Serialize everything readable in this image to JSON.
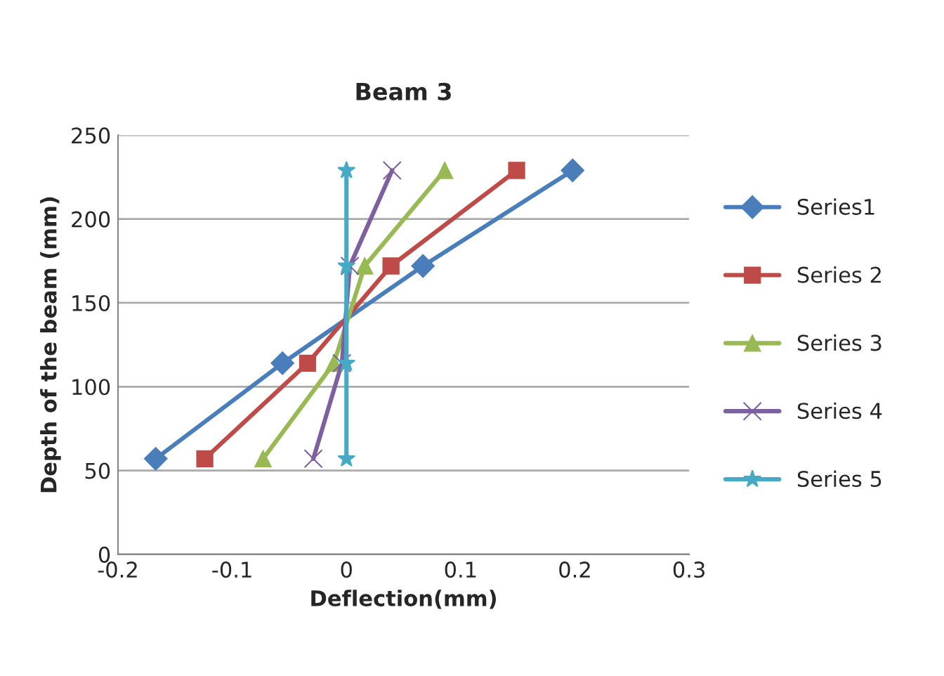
{
  "chart_data": {
    "type": "line",
    "title": "Beam 3",
    "xlabel": "Deflection(mm)",
    "ylabel": "Depth of the beam (mm)",
    "xlim": [
      -0.2,
      0.3
    ],
    "xticks": [
      {
        "value": -0.2,
        "label": "-0.2"
      },
      {
        "value": -0.1,
        "label": "-0.1"
      },
      0,
      0.1,
      0.2,
      0.3
    ],
    "ylim": [
      0,
      250
    ],
    "yticks": [
      0,
      50,
      100,
      150,
      200,
      250
    ],
    "grid": "y",
    "legend": "right",
    "series": [
      {
        "name": "Series1",
        "color": "#4a7ebb",
        "marker": "diamond",
        "x": [
          -0.167,
          -0.056,
          0.067,
          0.198
        ],
        "values": [
          57,
          114,
          172,
          229
        ]
      },
      {
        "name": "Series 2",
        "color": "#be4b48",
        "marker": "square",
        "x": [
          -0.124,
          -0.034,
          0.039,
          0.149
        ],
        "values": [
          57,
          114,
          172,
          229
        ]
      },
      {
        "name": "Series 3",
        "color": "#98b954",
        "marker": "triangle",
        "x": [
          -0.073,
          -0.011,
          0.016,
          0.086
        ],
        "values": [
          57,
          114,
          172,
          229
        ]
      },
      {
        "name": "Series 4",
        "color": "#7d60a0",
        "marker": "cross",
        "x": [
          -0.029,
          -0.004,
          0.003,
          0.04
        ],
        "values": [
          57,
          114,
          172,
          229
        ]
      },
      {
        "name": "Series 5",
        "color": "#46aac5",
        "marker": "star",
        "x": [
          0,
          0,
          0,
          0
        ],
        "values": [
          57,
          114,
          172,
          229
        ]
      }
    ]
  }
}
